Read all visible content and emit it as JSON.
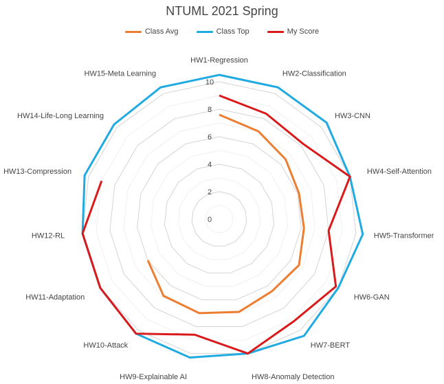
{
  "chart_data": {
    "type": "radar",
    "title": "NTUML 2021 Spring",
    "categories": [
      "HW1-Regression",
      "HW2-Classification",
      "HW3-CNN",
      "HW4-Self-Attention",
      "HW5-Transformer",
      "HW6-GAN",
      "HW7-BERT",
      "HW8-Anomaly Detection",
      "HW9-Explainable AI",
      "HW10-Attack",
      "HW11-Adaptation",
      "HW12-RL",
      "HW13-Compression",
      "HW14-Life-Long Learning",
      "HW15-Meta Learning"
    ],
    "ticks": [
      "0",
      "2",
      "4",
      "6",
      "8",
      "10"
    ],
    "rlim": [
      0,
      10
    ],
    "grid": true,
    "legend_position": "top",
    "series": [
      {
        "name": "Class Avg",
        "color": "#ED7D31",
        "values": [
          7.6,
          7.0,
          6.5,
          6.1,
          6.2,
          6.7,
          6.5,
          6.9,
          7.0,
          6.9,
          6.0,
          null,
          null,
          null,
          null
        ]
      },
      {
        "name": "Class Top",
        "color": "#1FAAE1",
        "values": [
          10.5,
          10.5,
          10.5,
          10.0,
          10.5,
          10.0,
          10.5,
          10.0,
          10.3,
          10.3,
          10.0,
          10.0,
          10.3,
          10.3,
          10.5
        ]
      },
      {
        "name": "My Score",
        "color": "#D9191A",
        "values": [
          9.0,
          8.4,
          8.2,
          10.0,
          8.0,
          9.8,
          9.2,
          10.0,
          8.6,
          10.3,
          10.0,
          10.0,
          9.0,
          null,
          null
        ]
      }
    ]
  }
}
